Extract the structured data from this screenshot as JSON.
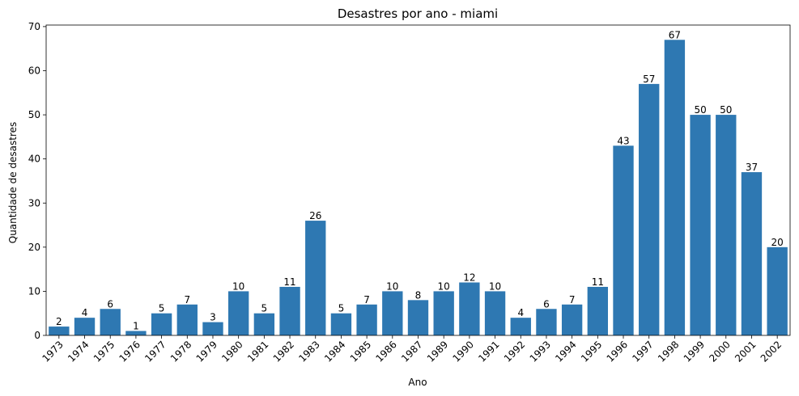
{
  "chart_data": {
    "type": "bar",
    "title": "Desastres por ano - miami",
    "xlabel": "Ano",
    "ylabel": "Quantidade de desastres",
    "categories": [
      "1973",
      "1974",
      "1975",
      "1976",
      "1977",
      "1978",
      "1979",
      "1980",
      "1981",
      "1982",
      "1983",
      "1984",
      "1985",
      "1986",
      "1987",
      "1989",
      "1990",
      "1991",
      "1992",
      "1993",
      "1994",
      "1995",
      "1996",
      "1997",
      "1998",
      "1999",
      "2000",
      "2001",
      "2002"
    ],
    "values": [
      2,
      4,
      6,
      1,
      5,
      7,
      3,
      10,
      5,
      11,
      26,
      5,
      7,
      10,
      8,
      10,
      12,
      10,
      4,
      6,
      7,
      11,
      43,
      57,
      67,
      50,
      50,
      37,
      20
    ],
    "ylim": [
      0,
      70.35
    ],
    "yticks": [
      0,
      10,
      20,
      30,
      40,
      50,
      60,
      70
    ],
    "grid": false,
    "legend": "none",
    "bar_color": "#2e78b2",
    "xtick_rotation": 45,
    "data_labels": true
  }
}
